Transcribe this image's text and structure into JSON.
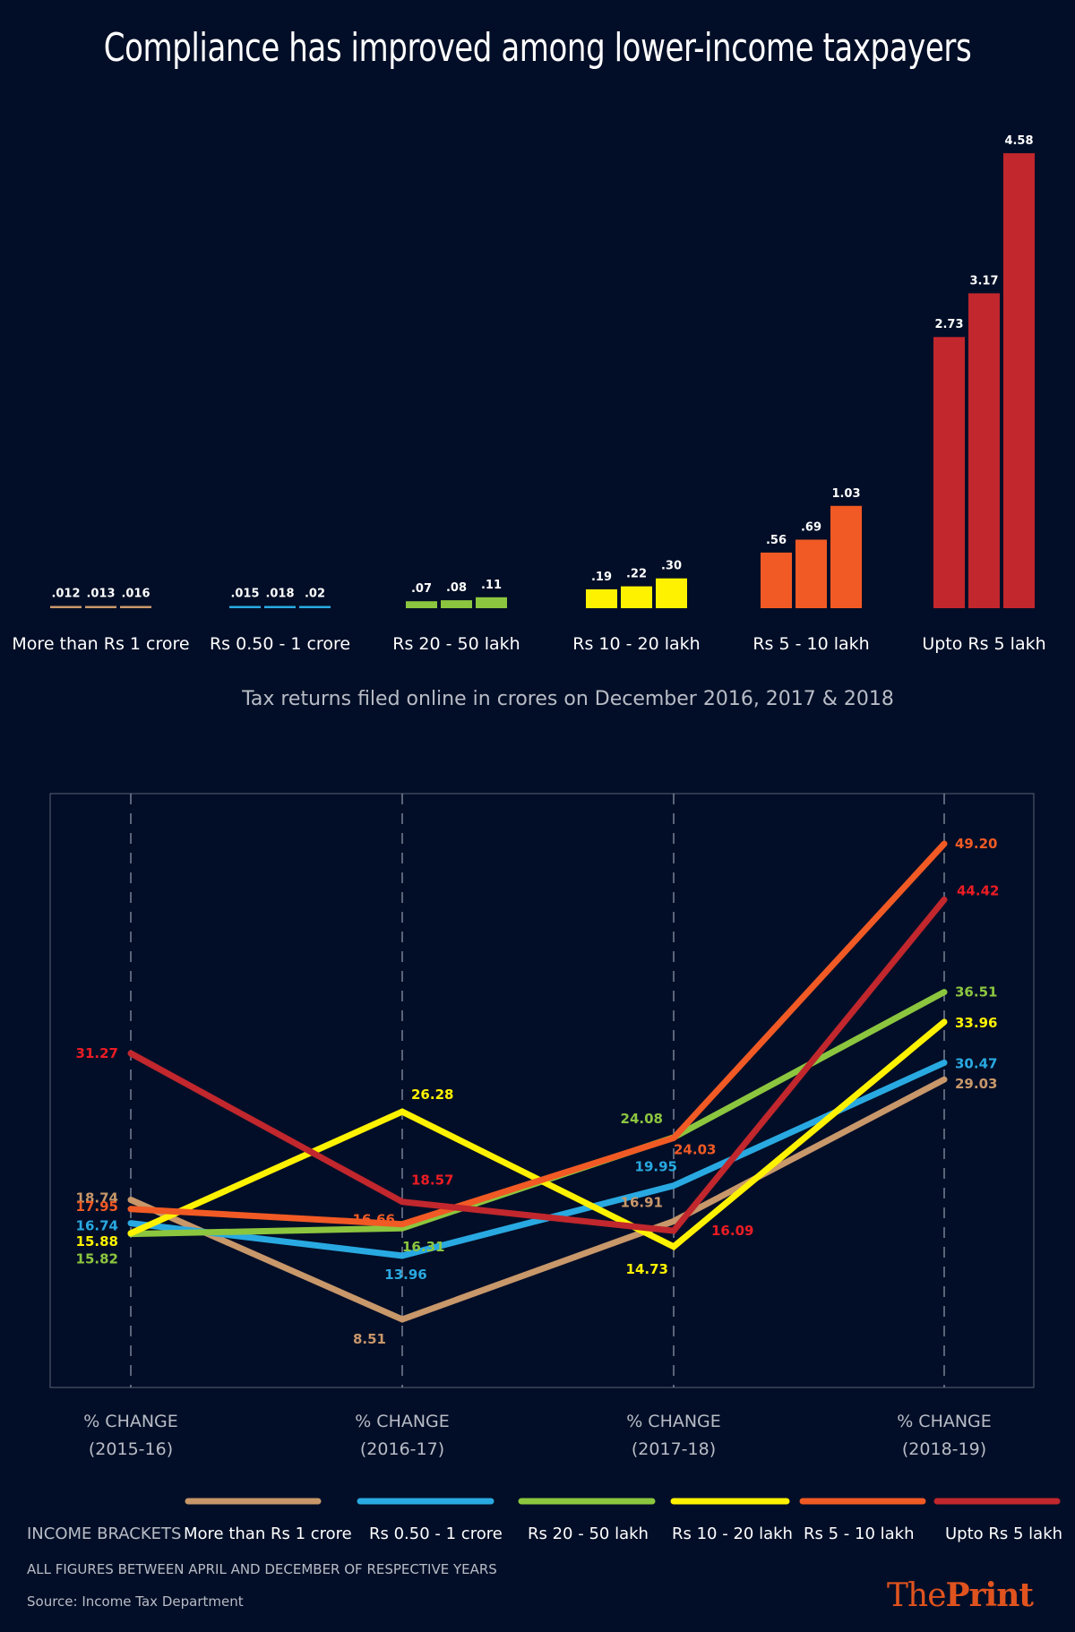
{
  "title": "Compliance has improved among lower-income taxpayers",
  "colors": {
    "background": "#020e27",
    "more_than_1_crore": "#c8976a",
    "rs_050_1_crore": "#29a9e1",
    "rs_20_50_lakh": "#8cc63f",
    "rs_10_20_lakh": "#fff200",
    "rs_5_10_lakh": "#f15a24",
    "upto_5_lakh": "#c1272d",
    "label_red": "#ed1c24",
    "logo": "#e0531e"
  },
  "chart_data": [
    {
      "type": "bar",
      "title": "Tax returns filed online in crores on December 2016, 2017 & 2018",
      "xlabel": "",
      "ylabel": "",
      "ylim": [
        0,
        4.58
      ],
      "categories": [
        "More than Rs 1 crore",
        "Rs 0.50 - 1 crore",
        "Rs 20 - 50 lakh",
        "Rs 10 - 20 lakh",
        "Rs 5 - 10 lakh",
        "Upto Rs 5 lakh"
      ],
      "series": [
        {
          "name": "December 2016",
          "values": [
            0.012,
            0.015,
            0.07,
            0.19,
            0.56,
            2.73
          ]
        },
        {
          "name": "December 2017",
          "values": [
            0.013,
            0.018,
            0.08,
            0.22,
            0.69,
            3.17
          ]
        },
        {
          "name": "December 2018",
          "values": [
            0.016,
            0.02,
            0.11,
            0.3,
            1.03,
            4.58
          ]
        }
      ],
      "value_labels": [
        [
          ".012",
          ".013",
          ".016"
        ],
        [
          ".015",
          ".018",
          ".02"
        ],
        [
          ".07",
          ".08",
          ".11"
        ],
        [
          ".19",
          ".22",
          ".30"
        ],
        [
          ".56",
          ".69",
          "1.03"
        ],
        [
          "2.73",
          "3.17",
          "4.58"
        ]
      ],
      "grid": false,
      "legend": "none"
    },
    {
      "type": "line",
      "title": "",
      "xlabel": "",
      "ylabel": "",
      "x": [
        "% CHANGE (2015-16)",
        "% CHANGE (2016-17)",
        "% CHANGE (2017-18)",
        "% CHANGE (2018-19)"
      ],
      "x_labels": [
        {
          "line1": "% CHANGE",
          "line2": "(2015-16)"
        },
        {
          "line1": "% CHANGE",
          "line2": "(2016-17)"
        },
        {
          "line1": "% CHANGE",
          "line2": "(2017-18)"
        },
        {
          "line1": "% CHANGE",
          "line2": "(2018-19)"
        }
      ],
      "ylim": [
        0,
        52
      ],
      "grid": "vertical dashed",
      "legend": "bottom",
      "legend_title": "INCOME BRACKETS",
      "series": [
        {
          "name": "More than Rs 1 crore",
          "key": "more_than_1_crore",
          "values": [
            18.74,
            8.51,
            16.91,
            29.03
          ],
          "labels": [
            "18.74",
            "8.51",
            "16.91",
            "29.03"
          ]
        },
        {
          "name": "Rs 0.50 - 1 crore",
          "key": "rs_050_1_crore",
          "values": [
            16.74,
            13.96,
            19.95,
            30.47
          ],
          "labels": [
            "16.74",
            "13.96",
            "19.95",
            "30.47"
          ]
        },
        {
          "name": "Rs 20 - 50 lakh",
          "key": "rs_20_50_lakh",
          "values": [
            15.82,
            16.31,
            24.08,
            36.51
          ],
          "labels": [
            "15.82",
            "16.31",
            "24.08",
            "36.51"
          ]
        },
        {
          "name": "Rs 10 - 20 lakh",
          "key": "rs_10_20_lakh",
          "values": [
            15.88,
            26.28,
            14.73,
            33.96
          ],
          "labels": [
            "15.88",
            "26.28",
            "14.73",
            "33.96"
          ]
        },
        {
          "name": "Rs 5 - 10 lakh",
          "key": "rs_5_10_lakh",
          "values": [
            17.95,
            16.66,
            24.03,
            49.2
          ],
          "labels": [
            "17.95",
            "16.66",
            "24.03",
            "49.20"
          ]
        },
        {
          "name": "Upto Rs 5 lakh",
          "key": "upto_5_lakh",
          "values": [
            31.27,
            18.57,
            16.09,
            44.42
          ],
          "labels": [
            "31.27",
            "18.57",
            "16.09",
            "44.42"
          ]
        }
      ]
    }
  ],
  "footer": {
    "note": "ALL FIGURES BETWEEN APRIL AND DECEMBER OF RESPECTIVE YEARS",
    "source": "Source: Income Tax Department",
    "logo_light": "The",
    "logo_bold": "Print"
  }
}
